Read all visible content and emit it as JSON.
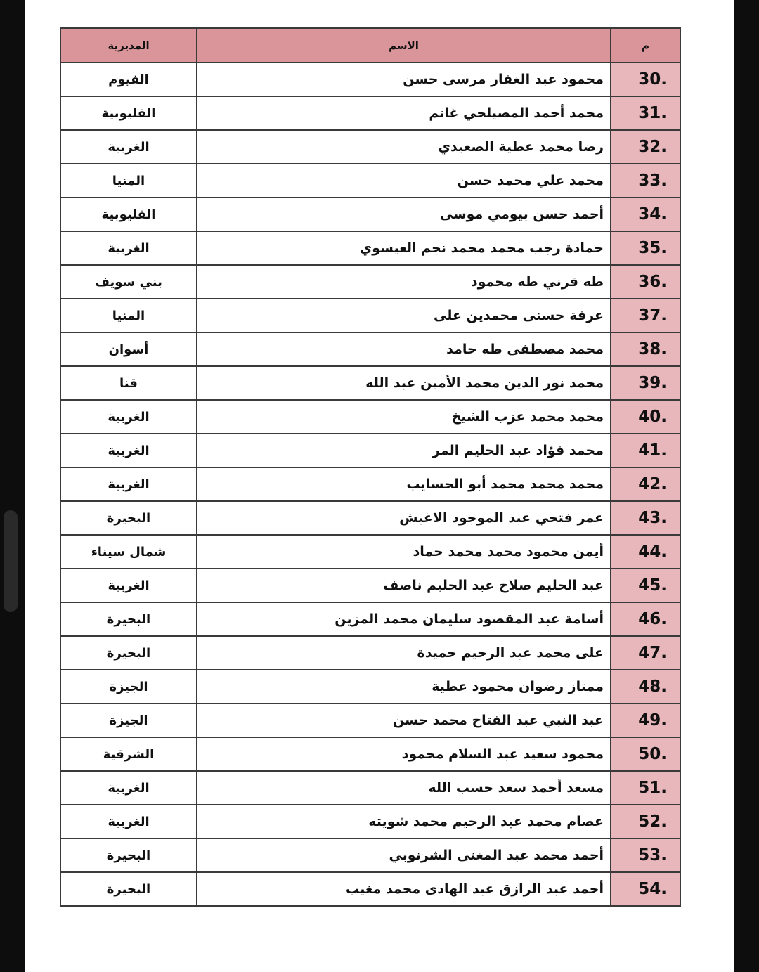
{
  "header": {
    "num": "م",
    "name": "الاسم",
    "governorate": "المديرية"
  },
  "rows": [
    {
      "num": "30.",
      "name": "محمود عبد الغفار مرسى حسن",
      "governorate": "الفيوم"
    },
    {
      "num": "31.",
      "name": "محمد أحمد المصيلحي غانم",
      "governorate": "القليوبية"
    },
    {
      "num": "32.",
      "name": "رضا محمد عطية الصعيدي",
      "governorate": "الغربية"
    },
    {
      "num": "33.",
      "name": "محمد علي محمد حسن",
      "governorate": "المنيا"
    },
    {
      "num": "34.",
      "name": "أحمد حسن بيومي موسى",
      "governorate": "القليوبية"
    },
    {
      "num": "35.",
      "name": "حمادة رجب محمد محمد نجم العيسوي",
      "governorate": "الغربية"
    },
    {
      "num": "36.",
      "name": "طه قرني طه محمود",
      "governorate": "بني سويف"
    },
    {
      "num": "37.",
      "name": "عرفة حسنى محمدين على",
      "governorate": "المنيا"
    },
    {
      "num": "38.",
      "name": "محمد مصطفى طه حامد",
      "governorate": "أسوان"
    },
    {
      "num": "39.",
      "name": "محمد نور الدين محمد الأمين عبد الله",
      "governorate": "قنا"
    },
    {
      "num": "40.",
      "name": "محمد محمد عزب الشيخ",
      "governorate": "الغربية"
    },
    {
      "num": "41.",
      "name": "محمد فؤاد عبد الحليم المر",
      "governorate": "الغربية"
    },
    {
      "num": "42.",
      "name": "محمد محمد محمد أبو الحسايب",
      "governorate": "الغربية"
    },
    {
      "num": "43.",
      "name": "عمر فتحي عبد الموجود الاغبش",
      "governorate": "البحيرة"
    },
    {
      "num": "44.",
      "name": "أيمن محمود محمد محمد حماد",
      "governorate": "شمال سيناء"
    },
    {
      "num": "45.",
      "name": "عبد الحليم صلاح عبد الحليم ناصف",
      "governorate": "الغربية"
    },
    {
      "num": "46.",
      "name": "أسامة عبد المقصود سليمان محمد المزين",
      "governorate": "البحيرة"
    },
    {
      "num": "47.",
      "name": "على محمد عبد الرحيم حميدة",
      "governorate": "البحيرة"
    },
    {
      "num": "48.",
      "name": "ممتاز رضوان محمود عطية",
      "governorate": "الجيزة"
    },
    {
      "num": "49.",
      "name": "عبد النبي عبد الفتاح محمد حسن",
      "governorate": "الجيزة"
    },
    {
      "num": "50.",
      "name": "محمود سعيد عبد السلام محمود",
      "governorate": "الشرقية"
    },
    {
      "num": "51.",
      "name": "مسعد أحمد سعد حسب الله",
      "governorate": "الغربية"
    },
    {
      "num": "52.",
      "name": "عصام محمد عبد الرحيم محمد شويته",
      "governorate": "الغربية"
    },
    {
      "num": "53.",
      "name": "أحمد محمد عبد المغنى الشرنوبي",
      "governorate": "البحيرة"
    },
    {
      "num": "54.",
      "name": "أحمد عبد الرازق عبد الهادى محمد مغيب",
      "governorate": "البحيرة"
    }
  ],
  "colors": {
    "header_bg": "#d9959a",
    "number_column_bg": "#e8b7bb"
  }
}
